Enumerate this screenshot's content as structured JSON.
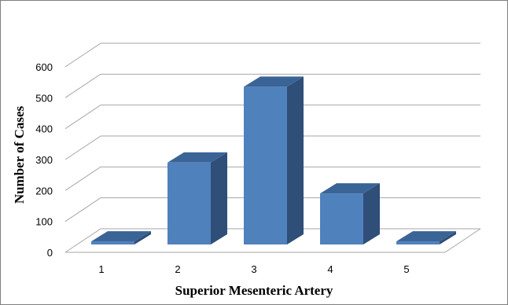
{
  "chart_data": {
    "type": "bar",
    "style": "3d-column",
    "title": "",
    "xlabel": "Superior Mesenteric Artery",
    "ylabel": "Number of Cases",
    "categories": [
      "1",
      "2",
      "3",
      "4",
      "5"
    ],
    "values": [
      10,
      265,
      510,
      165,
      10
    ],
    "ylim": [
      0,
      600
    ],
    "yticks": [
      "0",
      "100",
      "200",
      "300",
      "400",
      "500",
      "600"
    ],
    "grid": true,
    "legend": "none",
    "colors": {
      "bar_front": "#4f81bd",
      "bar_side": "#2f4e78",
      "bar_top": "#3b6496",
      "grid": "#a6a6a6"
    }
  }
}
